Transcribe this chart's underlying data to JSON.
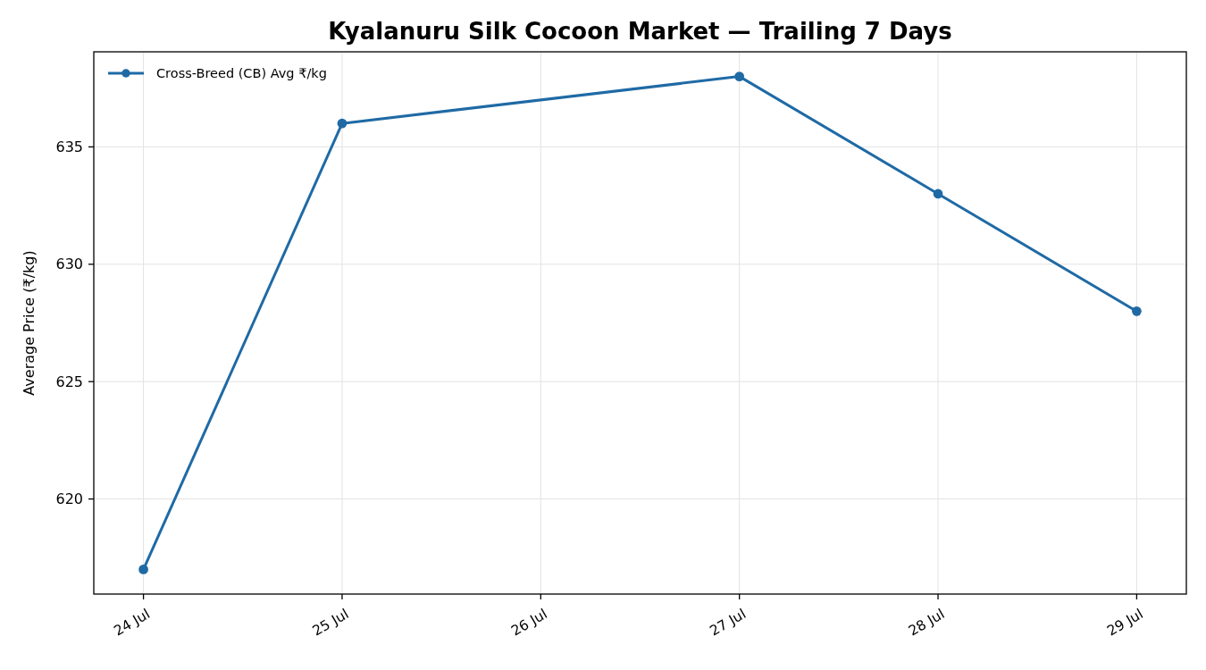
{
  "chart_data": {
    "type": "line",
    "title": "Kyalanuru Silk Cocoon Market — Trailing 7 Days",
    "ylabel": "Average Price (₹/kg)",
    "x": [
      "--07-24",
      "--07-25",
      "--07-27",
      "--07-28",
      "--07-29"
    ],
    "series": [
      {
        "name": "Cross-Breed (CB) Avg ₹/kg",
        "color": "#1f6aa5",
        "values": [
          617,
          636,
          638,
          633,
          628
        ]
      }
    ],
    "xlim": [
      "--07-23T18:00",
      "--07-29T06:00"
    ],
    "xticks": [
      {
        "value": "--07-24",
        "label": "24 Jul"
      },
      {
        "value": "--07-25",
        "label": "25 Jul"
      },
      {
        "value": "--07-26",
        "label": "26 Jul"
      },
      {
        "value": "--07-27",
        "label": "27 Jul"
      },
      {
        "value": "--07-28",
        "label": "28 Jul"
      },
      {
        "value": "--07-29",
        "label": "29 Jul"
      }
    ],
    "ylim": [
      615.95,
      639.05
    ],
    "yticks": [
      620,
      625,
      630,
      635
    ],
    "grid": true,
    "legend": "top left",
    "marker": "circle",
    "line_style": "solid"
  }
}
